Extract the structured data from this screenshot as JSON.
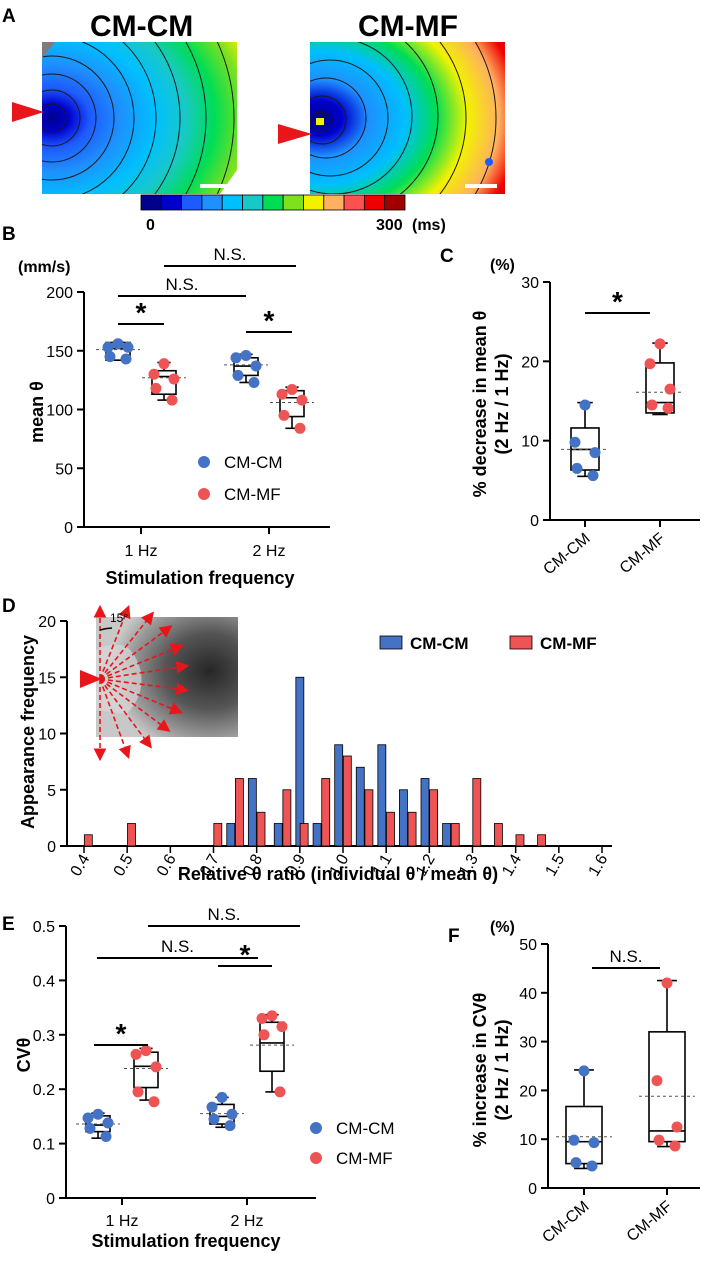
{
  "panel_labels": {
    "a": "A",
    "b": "B",
    "c": "C",
    "d": "D",
    "e": "E",
    "f": "F"
  },
  "panel_a": {
    "titles": [
      "CM-CM",
      "CM-MF"
    ],
    "colorbar": {
      "min_label": "0",
      "max_label": "300",
      "unit": "(ms)",
      "colors": [
        "#00008b",
        "#0000cd",
        "#1e5bff",
        "#1e90ff",
        "#00bfff",
        "#18c8c8",
        "#00dd55",
        "#7fe020",
        "#f2f200",
        "#ffb060",
        "#ff5050",
        "#ee0000",
        "#a00000"
      ]
    }
  },
  "chart_data": [
    {
      "panel": "B",
      "type": "box_dot",
      "title": "",
      "xlabel": "Stimulation frequency",
      "ylabel": "mean θ",
      "unit": "(mm/s)",
      "ylim": [
        0,
        200
      ],
      "yticks": [
        "0",
        "50",
        "100",
        "150",
        "200"
      ],
      "categories": [
        "1 Hz",
        "2 Hz"
      ],
      "series": [
        {
          "name": "CM-CM",
          "color": "#4472c4",
          "values": [
            [
              156,
              153,
              153,
              145,
              143
            ],
            [
              146,
              144,
              137,
              129,
              123
            ]
          ],
          "box": [
            [
              142,
              157
            ],
            [
              129,
              144
            ]
          ],
          "median": [
            152,
            137
          ],
          "mean": [
            151,
            138
          ],
          "whiskers": [
            [
              142,
              157
            ],
            [
              123,
              147
            ]
          ]
        },
        {
          "name": "CM-MF",
          "color": "#ef5454",
          "values": [
            [
              139,
              130,
              126,
              118,
              108
            ],
            [
              117,
              113,
              108,
              95,
              84
            ]
          ],
          "box": [
            [
              113,
              133
            ],
            [
              94,
              116
            ]
          ],
          "median": [
            128,
            110
          ],
          "mean": [
            127,
            106
          ],
          "whiskers": [
            [
              108,
              140
            ],
            [
              84,
              119
            ]
          ]
        }
      ],
      "annotations": [
        "*",
        "*",
        "N.S.",
        "N.S."
      ],
      "legend": [
        "CM-CM",
        "CM-MF"
      ]
    },
    {
      "panel": "C",
      "type": "box_dot",
      "ylabel": "% decrease in mean θ",
      "ylabel2": "(2 Hz / 1 Hz)",
      "unit": "(%)",
      "ylim": [
        0,
        30
      ],
      "yticks": [
        "0",
        "10",
        "20",
        "30"
      ],
      "categories": [
        "CM-CM",
        "CM-MF"
      ],
      "series": [
        {
          "name": "CM-CM",
          "color": "#4472c4",
          "values": [
            14.5,
            9.8,
            8.5,
            6.5,
            5.6
          ],
          "box": [
            6.3,
            11.6
          ],
          "median": 8.9,
          "mean": 8.9,
          "whiskers": [
            5.5,
            14.8
          ]
        },
        {
          "name": "CM-MF",
          "color": "#ef5454",
          "values": [
            22.2,
            19.7,
            16.5,
            14.5,
            14.1
          ],
          "box": [
            13.5,
            19.8
          ],
          "median": 14.8,
          "mean": 16.1,
          "whiskers": [
            13.3,
            22.3
          ]
        }
      ],
      "annotations": [
        "*"
      ]
    },
    {
      "panel": "D",
      "type": "bar",
      "xlabel": "Relative θ ratio (individual θ / mean θ)",
      "ylabel": "Appearance frequency",
      "ylim": [
        0,
        20
      ],
      "yticks": [
        "0",
        "5",
        "10",
        "15",
        "20"
      ],
      "xlim": [
        0.4,
        1.6
      ],
      "xticks": [
        "0.4",
        "0.5",
        "0.6",
        "0.7",
        "0.8",
        "0.9",
        "1.0",
        "1.1",
        "1.2",
        "1.3",
        "1.4",
        "1.5",
        "1.6"
      ],
      "inset_angle": "15°",
      "series": [
        {
          "name": "CM-CM",
          "color": "#4472c4",
          "x": [
            0.74,
            0.79,
            0.85,
            0.9,
            0.94,
            0.99,
            1.04,
            1.09,
            1.14,
            1.19,
            1.24
          ],
          "values": [
            2,
            6,
            2,
            15,
            2,
            9,
            7,
            9,
            5,
            6,
            2
          ]
        },
        {
          "name": "CM-MF",
          "color": "#ef5454",
          "x": [
            0.41,
            0.51,
            0.71,
            0.76,
            0.81,
            0.87,
            0.91,
            0.96,
            1.01,
            1.06,
            1.11,
            1.16,
            1.21,
            1.26,
            1.31,
            1.36,
            1.41,
            1.46
          ],
          "values": [
            1,
            2,
            2,
            6,
            3,
            5,
            2,
            6,
            8,
            5,
            3,
            3,
            5,
            2,
            6,
            2,
            1,
            1
          ]
        }
      ],
      "legend": [
        "CM-CM",
        "CM-MF"
      ]
    },
    {
      "panel": "E",
      "type": "box_dot",
      "xlabel": "Stimulation frequency",
      "ylabel": "CVθ",
      "ylim": [
        0,
        0.5
      ],
      "yticks": [
        "0",
        "0.1",
        "0.2",
        "0.3",
        "0.4",
        "0.5"
      ],
      "categories": [
        "1 Hz",
        "2 Hz"
      ],
      "series": [
        {
          "name": "CM-CM",
          "color": "#4472c4",
          "values": [
            [
              0.154,
              0.147,
              0.138,
              0.128,
              0.113
            ],
            [
              0.185,
              0.167,
              0.154,
              0.145,
              0.133
            ]
          ],
          "box": [
            [
              0.122,
              0.151
            ],
            [
              0.136,
              0.172
            ]
          ],
          "median": [
            0.134,
            0.15
          ],
          "mean": [
            0.136,
            0.155
          ],
          "whiskers": [
            [
              0.11,
              0.156
            ],
            [
              0.13,
              0.185
            ]
          ]
        },
        {
          "name": "CM-MF",
          "color": "#ef5454",
          "values": [
            [
              0.271,
              0.264,
              0.241,
              0.195,
              0.177
            ],
            [
              0.335,
              0.33,
              0.315,
              0.3,
              0.195
            ]
          ],
          "box": [
            [
              0.203,
              0.268
            ],
            [
              0.233,
              0.323
            ]
          ],
          "median": [
            0.242,
            0.285
          ],
          "mean": [
            0.238,
            0.281
          ],
          "whiskers": [
            [
              0.18,
              0.275
            ],
            [
              0.195,
              0.337
            ]
          ]
        }
      ],
      "annotations": [
        "*",
        "*",
        "N.S.",
        "N.S."
      ],
      "legend": [
        "CM-CM",
        "CM-MF"
      ]
    },
    {
      "panel": "F",
      "type": "box_dot",
      "ylabel": "% increase in CVθ",
      "ylabel2": "(2 Hz / 1 Hz)",
      "unit": "(%)",
      "ylim": [
        0,
        50
      ],
      "yticks": [
        "0",
        "10",
        "20",
        "30",
        "40",
        "50"
      ],
      "categories": [
        "CM-CM",
        "CM-MF"
      ],
      "series": [
        {
          "name": "CM-CM",
          "color": "#4472c4",
          "values": [
            24,
            9.8,
            9.3,
            5.2,
            4.5
          ],
          "box": [
            5,
            16.7
          ],
          "median": 9.5,
          "mean": 10.5,
          "whiskers": [
            4,
            24.2
          ]
        },
        {
          "name": "CM-MF",
          "color": "#ef5454",
          "values": [
            42,
            22,
            12.5,
            9.8,
            8.6
          ],
          "box": [
            9.5,
            32
          ],
          "median": 11.7,
          "mean": 18.8,
          "whiskers": [
            8.5,
            42.5
          ]
        }
      ],
      "annotations": [
        "N.S."
      ]
    }
  ],
  "text": {
    "b_unit": "(mm/s)",
    "b_ylabel": "mean θ",
    "b_xlabel": "Stimulation frequency",
    "c_unit": "(%)",
    "c_ylabel1": "% decrease in mean θ",
    "c_ylabel2": "(2 Hz / 1 Hz)",
    "d_ylabel": "Appearance frequency",
    "d_xlabel": "Relative θ ratio (individual θ / mean θ)",
    "e_ylabel": "CVθ",
    "e_xlabel": "Stimulation frequency",
    "f_unit": "(%)",
    "f_ylabel1": "% increase in CVθ",
    "f_ylabel2": "(2 Hz / 1 Hz)",
    "star": "*",
    "ns": "N.S.",
    "inset_angle": "15°"
  }
}
